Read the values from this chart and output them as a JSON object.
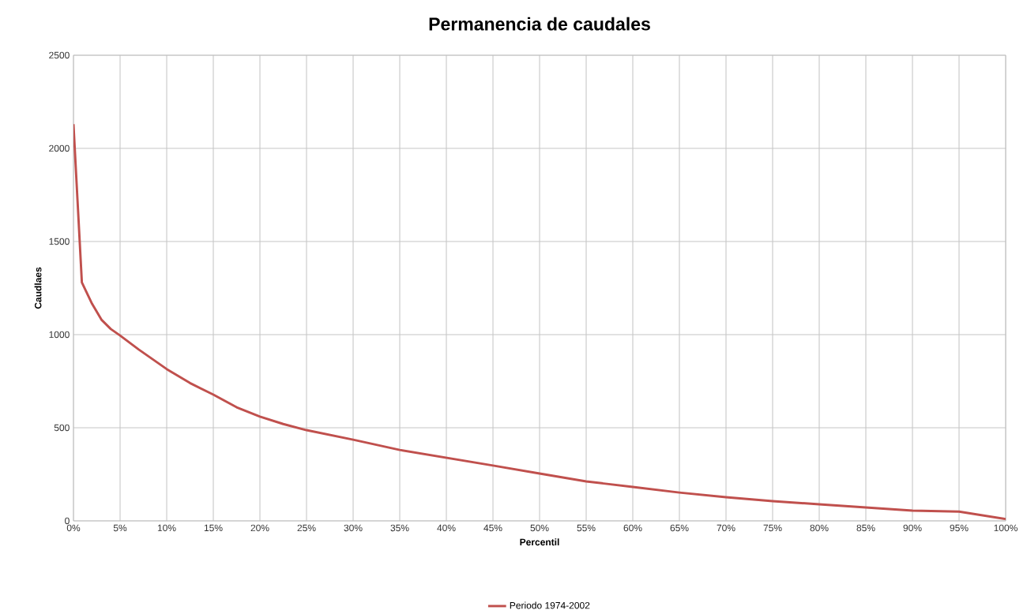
{
  "chart_data": {
    "type": "line",
    "title": "Permanencia de caudales",
    "xlabel": "Percentil",
    "ylabel": "Caudlaes",
    "x": [
      0,
      0.9,
      2,
      3,
      4,
      5,
      7,
      10,
      12.5,
      15,
      17.5,
      20,
      22.5,
      25,
      30,
      35,
      40,
      45,
      50,
      55,
      60,
      65,
      70,
      75,
      80,
      85,
      90,
      95,
      97.5,
      100
    ],
    "series": [
      {
        "name": "Periodo 1974-2002",
        "color": "#c0504d",
        "values": [
          2130,
          1280,
          1165,
          1080,
          1030,
          995,
          920,
          815,
          740,
          678,
          610,
          560,
          520,
          487,
          436,
          381,
          339,
          297,
          254,
          212,
          182,
          152,
          127,
          106,
          89,
          72,
          55,
          50,
          30,
          10
        ]
      }
    ],
    "xlim": [
      0,
      100
    ],
    "xticks": [
      {
        "value": 0,
        "label": "0%"
      },
      {
        "value": 5,
        "label": "5%"
      },
      {
        "value": 10,
        "label": "10%"
      },
      {
        "value": 15,
        "label": "15%"
      },
      {
        "value": 20,
        "label": "20%"
      },
      {
        "value": 25,
        "label": "25%"
      },
      {
        "value": 30,
        "label": "30%"
      },
      {
        "value": 35,
        "label": "35%"
      },
      {
        "value": 40,
        "label": "40%"
      },
      {
        "value": 45,
        "label": "45%"
      },
      {
        "value": 50,
        "label": "50%"
      },
      {
        "value": 55,
        "label": "55%"
      },
      {
        "value": 60,
        "label": "60%"
      },
      {
        "value": 65,
        "label": "65%"
      },
      {
        "value": 70,
        "label": "70%"
      },
      {
        "value": 75,
        "label": "75%"
      },
      {
        "value": 80,
        "label": "80%"
      },
      {
        "value": 85,
        "label": "85%"
      },
      {
        "value": 90,
        "label": "90%"
      },
      {
        "value": 95,
        "label": "95%"
      },
      {
        "value": 100,
        "label": "100%"
      }
    ],
    "ylim": [
      0,
      2500
    ],
    "yticks": [
      0,
      500,
      1000,
      1500,
      2000,
      2500
    ],
    "grid": true,
    "legend": "bottom",
    "marker": "none",
    "line_style": "solid"
  }
}
